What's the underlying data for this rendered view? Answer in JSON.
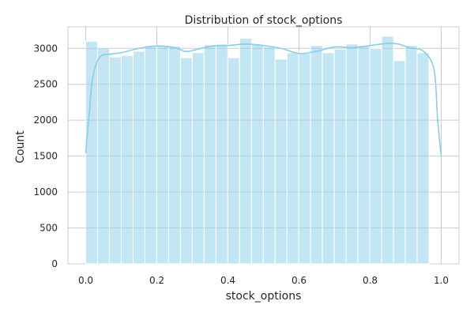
{
  "chart_data": {
    "type": "bar",
    "title": "Distribution of stock_options",
    "xlabel": "stock_options",
    "ylabel": "Count",
    "xlim": [
      -0.05,
      1.05
    ],
    "ylim": [
      0,
      3300
    ],
    "xticks": [
      "0.0",
      "0.2",
      "0.4",
      "0.6",
      "0.8",
      "1.0"
    ],
    "yticks": [
      "0",
      "500",
      "1000",
      "1500",
      "2000",
      "2500",
      "3000"
    ],
    "grid": true,
    "bar_color": "#87ceeb",
    "kde_color": "#87ceeb",
    "bins": {
      "start": 0.0,
      "width": 0.0333,
      "counts": [
        3100,
        3010,
        2880,
        2900,
        2960,
        3030,
        3040,
        3030,
        2870,
        2940,
        3050,
        3060,
        2870,
        3140,
        3050,
        3020,
        2850,
        2940,
        2930,
        3040,
        2940,
        2990,
        3060,
        3040,
        3000,
        3170,
        2830,
        3040,
        2940
      ]
    },
    "kde": {
      "x": [
        0.0,
        0.01,
        0.02,
        0.04,
        0.07,
        0.1,
        0.15,
        0.2,
        0.25,
        0.28,
        0.3,
        0.35,
        0.4,
        0.45,
        0.5,
        0.55,
        0.6,
        0.65,
        0.7,
        0.75,
        0.8,
        0.85,
        0.88,
        0.91,
        0.95,
        0.98,
        0.99,
        1.0
      ],
      "y": [
        1540,
        2100,
        2600,
        2880,
        2920,
        2940,
        3000,
        3035,
        3010,
        2960,
        2970,
        3030,
        3040,
        3060,
        3040,
        3000,
        2930,
        2960,
        3020,
        3010,
        3040,
        3070,
        3060,
        3010,
        2960,
        2700,
        2000,
        1500
      ]
    }
  }
}
